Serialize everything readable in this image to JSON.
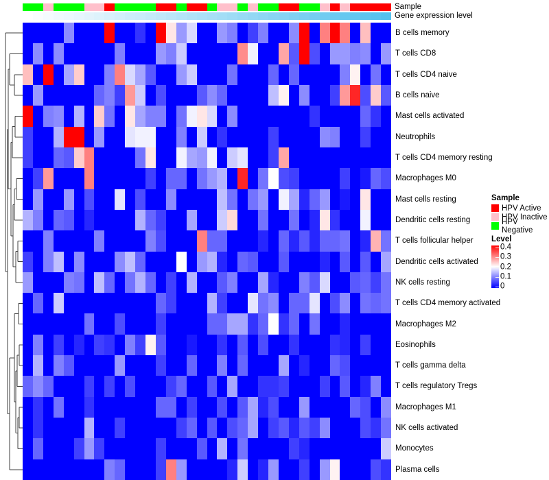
{
  "annotations": {
    "sample_label": "Sample",
    "gene_label": "Gene expression level"
  },
  "legend": {
    "sample": {
      "title": "Sample",
      "items": [
        {
          "label": "HPV Active",
          "color": "#FF0000"
        },
        {
          "label": "HPV Inactive",
          "color": "#FFC0CB"
        },
        {
          "label": "HPV Negative",
          "color": "#00FF00"
        }
      ]
    },
    "level": {
      "title": "Level",
      "ticks": [
        "0.4",
        "0.3",
        "0.2",
        "0.1",
        "0"
      ]
    }
  },
  "chart_data": {
    "type": "heatmap",
    "title": "",
    "n_columns": 36,
    "rows": [
      "B cells memory",
      "T cells CD8",
      "T cells CD4 naive",
      "B cells naive",
      "Mast cells activated",
      "Neutrophils",
      "T cells CD4 memory resting",
      "Macrophages M0",
      "Mast cells resting",
      "Dendritic cells resting",
      "T cells follicular helper",
      "Dendritic cells activated",
      "NK cells resting",
      "T cells CD4 memory activated",
      "Macrophages M2",
      "Eosinophils",
      "T cells gamma delta",
      "T cells regulatory  Tregs",
      "Macrophages M1",
      "NK cells activated",
      "Monocytes",
      "Plasma cells"
    ],
    "value_scale": {
      "min": 0,
      "mid": 0.2,
      "max": 0.4,
      "low_color": "#0000FF",
      "mid_color": "#FFFFFF",
      "high_color": "#FF0000"
    },
    "sample_annotation": {
      "colors": {
        "HPV Active": "#FF0000",
        "HPV Inactive": "#FFC0CB",
        "HPV Negative": "#00FF00"
      },
      "by_column": [
        "HPV Negative",
        "HPV Negative",
        "HPV Inactive",
        "HPV Negative",
        "HPV Negative",
        "HPV Negative",
        "HPV Inactive",
        "HPV Inactive",
        "HPV Active",
        "HPV Negative",
        "HPV Negative",
        "HPV Negative",
        "HPV Negative",
        "HPV Active",
        "HPV Active",
        "HPV Negative",
        "HPV Active",
        "HPV Active",
        "HPV Negative",
        "HPV Inactive",
        "HPV Inactive",
        "HPV Negative",
        "HPV Inactive",
        "HPV Negative",
        "HPV Negative",
        "HPV Active",
        "HPV Active",
        "HPV Negative",
        "HPV Negative",
        "HPV Inactive",
        "HPV Active",
        "HPV Inactive",
        "HPV Active",
        "HPV Active",
        "HPV Active",
        "HPV Active"
      ]
    },
    "gene_expression": {
      "low_color": "#FFFFFF",
      "high_color": "#54C1EE",
      "by_column": [
        0,
        0.03,
        0.06,
        0.09,
        0.11,
        0.14,
        0.17,
        0.2,
        0.23,
        0.26,
        0.29,
        0.31,
        0.34,
        0.37,
        0.4,
        0.43,
        0.46,
        0.49,
        0.51,
        0.54,
        0.57,
        0.6,
        0.63,
        0.66,
        0.69,
        0.71,
        0.74,
        0.77,
        0.8,
        0.83,
        0.86,
        0.89,
        0.91,
        0.94,
        0.97,
        1
      ]
    },
    "values": [
      [
        0,
        0,
        0,
        0,
        0.11,
        0,
        0,
        0,
        0.4,
        0,
        0,
        0.04,
        0,
        0.4,
        0.22,
        0.12,
        0.17,
        0,
        0,
        0.12,
        0.1,
        0,
        0.05,
        0.1,
        0,
        0,
        0.11,
        0.4,
        0,
        0.3,
        0.4,
        0.3,
        0,
        0.25,
        0,
        0
      ],
      [
        0,
        0.11,
        0,
        0.11,
        0,
        0,
        0,
        0,
        0,
        0.1,
        0,
        0,
        0,
        0.12,
        0.1,
        0.16,
        0,
        0,
        0,
        0,
        0,
        0.29,
        0.19,
        0,
        0,
        0.27,
        0.07,
        0.4,
        0.06,
        0,
        0.12,
        0.12,
        0.1,
        0.11,
        0,
        0.12
      ],
      [
        0.25,
        0,
        0.4,
        0,
        0.13,
        0.24,
        0,
        0,
        0.1,
        0.3,
        0.17,
        0.13,
        0.07,
        0,
        0,
        0.12,
        0.16,
        0,
        0,
        0,
        0.09,
        0,
        0,
        0,
        0.08,
        0,
        0.08,
        0,
        0,
        0,
        0,
        0.1,
        0.21,
        0,
        0.09,
        0
      ],
      [
        0,
        0.12,
        0,
        0,
        0,
        0,
        0,
        0.08,
        0.1,
        0.05,
        0.28,
        0.16,
        0,
        0.06,
        0,
        0,
        0,
        0.07,
        0.11,
        0.08,
        0,
        0,
        0,
        0,
        0.15,
        0.21,
        0,
        0.11,
        0,
        0,
        0.05,
        0.28,
        0.37,
        0.06,
        0.24,
        0.07
      ],
      [
        0.4,
        0,
        0.1,
        0.11,
        0,
        0.14,
        0,
        0.24,
        0.09,
        0,
        0.22,
        0.13,
        0.1,
        0.1,
        0,
        0.09,
        0.19,
        0.22,
        0.17,
        0,
        0.11,
        0,
        0,
        0,
        0,
        0,
        0,
        0,
        0.04,
        0,
        0,
        0,
        0,
        0.08,
        0.04,
        0
      ],
      [
        0.05,
        0,
        0,
        0.14,
        0.4,
        0.4,
        0,
        0.12,
        0,
        0,
        0.18,
        0.19,
        0.19,
        0,
        0,
        0.1,
        0,
        0.16,
        0,
        0.04,
        0,
        0,
        0,
        0,
        0.05,
        0,
        0,
        0,
        0,
        0.11,
        0.1,
        0,
        0,
        0.05,
        0,
        0
      ],
      [
        0.05,
        0,
        0,
        0.08,
        0.07,
        0.24,
        0.3,
        0,
        0,
        0,
        0,
        0.09,
        0.22,
        0,
        0,
        0.19,
        0.13,
        0.12,
        0.19,
        0,
        0.16,
        0.18,
        0,
        0,
        0.05,
        0.27,
        0,
        0,
        0,
        0,
        0,
        0,
        0,
        0,
        0,
        0
      ],
      [
        0,
        0.05,
        0.28,
        0,
        0,
        0,
        0.3,
        0,
        0,
        0,
        0,
        0,
        0.05,
        0,
        0.08,
        0.08,
        0,
        0.09,
        0.12,
        0.14,
        0,
        0.37,
        0,
        0.09,
        0.2,
        0.06,
        0.05,
        0,
        0,
        0,
        0,
        0.05,
        0,
        0.02,
        0.08,
        0.06
      ],
      [
        0,
        0.12,
        0,
        0,
        0.12,
        0,
        0.06,
        0,
        0,
        0.18,
        0,
        0.06,
        0,
        0,
        0.11,
        0,
        0,
        0,
        0,
        0.15,
        0.09,
        0,
        0.09,
        0.12,
        0,
        0.19,
        0.13,
        0.03,
        0.08,
        0.12,
        0,
        0.02,
        0,
        0.22,
        0,
        0
      ],
      [
        0.14,
        0.1,
        0,
        0.08,
        0.07,
        0,
        0.03,
        0,
        0,
        0,
        0,
        0.14,
        0.08,
        0.05,
        0,
        0,
        0.13,
        0,
        0,
        0.16,
        0.23,
        0,
        0,
        0.09,
        0,
        0,
        0.09,
        0,
        0.03,
        0.22,
        0.04,
        0,
        0,
        0.19,
        0,
        0
      ],
      [
        0,
        0,
        0.1,
        0,
        0,
        0,
        0,
        0.1,
        0,
        0,
        0,
        0,
        0.1,
        0.06,
        0,
        0,
        0,
        0.3,
        0.08,
        0.08,
        0,
        0,
        0,
        0.03,
        0,
        0.08,
        0.03,
        0.07,
        0.03,
        0.08,
        0.08,
        0.09,
        0,
        0.03,
        0.26,
        0.09
      ],
      [
        0.05,
        0,
        0.1,
        0.15,
        0,
        0.11,
        0,
        0,
        0,
        0.11,
        0.15,
        0.08,
        0,
        0,
        0,
        0.2,
        0,
        0.12,
        0.14,
        0.03,
        0,
        0.08,
        0.07,
        0,
        0,
        0.07,
        0,
        0,
        0,
        0.03,
        0,
        0.07,
        0,
        0.07,
        0,
        0.13
      ],
      [
        0.12,
        0,
        0,
        0,
        0.1,
        0.09,
        0,
        0.15,
        0.08,
        0,
        0.09,
        0.14,
        0.08,
        0,
        0.05,
        0,
        0.14,
        0,
        0,
        0.07,
        0.1,
        0,
        0,
        0.13,
        0.03,
        0,
        0,
        0.1,
        0.07,
        0.17,
        0,
        0,
        0.07,
        0.08,
        0.05,
        0.09
      ],
      [
        0,
        0.08,
        0,
        0.16,
        0,
        0,
        0,
        0,
        0,
        0,
        0,
        0,
        0,
        0.08,
        0.05,
        0,
        0,
        0,
        0.14,
        0.05,
        0,
        0,
        0.18,
        0.09,
        0.11,
        0,
        0.08,
        0.08,
        0.18,
        0,
        0.06,
        0.11,
        0,
        0.09,
        0.08,
        0.09
      ],
      [
        0,
        0,
        0,
        0,
        0,
        0,
        0.09,
        0,
        0,
        0.06,
        0,
        0,
        0,
        0.05,
        0,
        0,
        0,
        0,
        0.08,
        0.08,
        0.13,
        0.13,
        0.04,
        0.08,
        0.2,
        0.04,
        0.08,
        0,
        0.09,
        0,
        0,
        0.03,
        0,
        0,
        0,
        0
      ],
      [
        0,
        0.1,
        0,
        0.05,
        0,
        0.03,
        0,
        0.05,
        0.04,
        0,
        0.1,
        0.05,
        0.21,
        0.07,
        0,
        0,
        0.02,
        0,
        0,
        0.04,
        0,
        0.07,
        0,
        0.06,
        0,
        0,
        0.04,
        0,
        0,
        0,
        0.04,
        0.03,
        0,
        0.05,
        0,
        0
      ],
      [
        0,
        0.14,
        0,
        0.1,
        0.07,
        0,
        0,
        0,
        0,
        0.12,
        0,
        0,
        0,
        0.05,
        0,
        0,
        0.08,
        0,
        0,
        0.1,
        0,
        0.08,
        0,
        0,
        0,
        0.13,
        0,
        0.03,
        0,
        0,
        0.08,
        0.06,
        0,
        0,
        0,
        0
      ],
      [
        0.08,
        0.11,
        0.08,
        0,
        0,
        0,
        0.05,
        0,
        0.05,
        0,
        0.06,
        0,
        0,
        0,
        0.05,
        0.08,
        0,
        0,
        0.07,
        0,
        0.13,
        0,
        0,
        0.04,
        0.04,
        0.05,
        0,
        0,
        0,
        0.05,
        0,
        0.07,
        0,
        0.03,
        0.1,
        0
      ],
      [
        0,
        0.04,
        0,
        0.09,
        0,
        0,
        0.04,
        0,
        0,
        0,
        0,
        0,
        0,
        0.08,
        0.08,
        0,
        0.05,
        0,
        0,
        0.06,
        0,
        0.07,
        0.13,
        0.03,
        0.06,
        0,
        0,
        0.12,
        0,
        0,
        0,
        0,
        0.08,
        0.06,
        0,
        0.11
      ],
      [
        0,
        0.04,
        0,
        0,
        0,
        0,
        0.14,
        0,
        0,
        0.05,
        0,
        0,
        0,
        0,
        0,
        0.05,
        0.08,
        0,
        0.07,
        0,
        0.06,
        0.08,
        0.13,
        0,
        0.05,
        0.07,
        0.03,
        0.07,
        0.05,
        0.11,
        0,
        0,
        0,
        0.06,
        0.04,
        0.09
      ],
      [
        0,
        0.08,
        0,
        0,
        0,
        0.05,
        0.12,
        0.05,
        0,
        0,
        0,
        0,
        0,
        0.05,
        0,
        0,
        0,
        0.07,
        0,
        0.14,
        0,
        0.09,
        0,
        0,
        0,
        0,
        0.05,
        0.03,
        0,
        0,
        0,
        0,
        0,
        0,
        0,
        0.16
      ],
      [
        0,
        0,
        0,
        0,
        0,
        0,
        0,
        0,
        0.1,
        0.08,
        0,
        0,
        0,
        0.05,
        0.3,
        0.12,
        0,
        0,
        0,
        0,
        0.03,
        0.16,
        0,
        0.03,
        0.12,
        0,
        0,
        0.05,
        0,
        0.12,
        0.21,
        0,
        0,
        0,
        0.06,
        0.04
      ]
    ]
  }
}
